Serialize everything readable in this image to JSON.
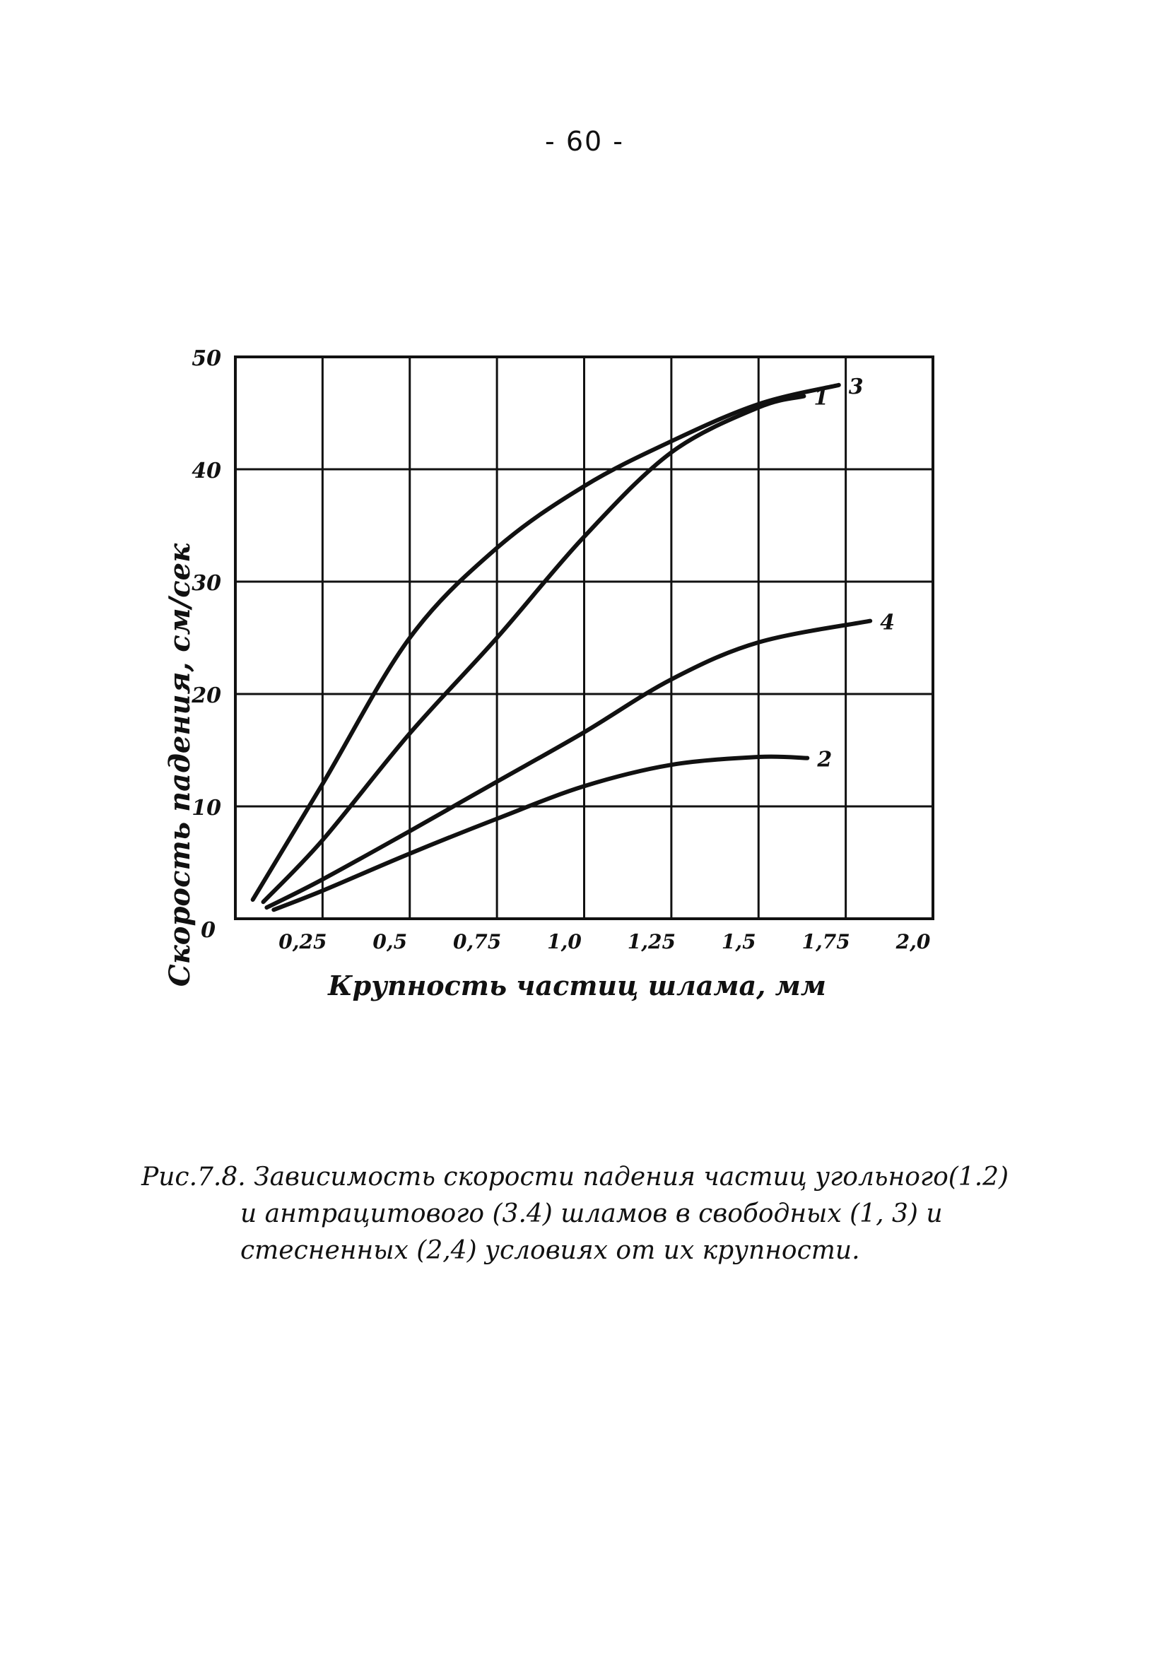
{
  "page_number": "- 60 -",
  "caption": {
    "line1": "Рис.7.8. Зависимость скорости падения частиц угольного(1.2)",
    "line2": "и антрацитового (3.4) шламов в свободных (1, 3) и",
    "line3": "стесненных (2,4) условиях от их крупности."
  },
  "chart_data": {
    "type": "line",
    "title": "",
    "xlabel": "Крупность частиц шлама, мм",
    "ylabel": "Скорость падения, см/сек",
    "xlim": [
      0,
      2.0
    ],
    "ylim": [
      0,
      50
    ],
    "grid": true,
    "legend": "none",
    "x_ticks": [
      {
        "value": 0.25,
        "label": "0,25"
      },
      {
        "value": 0.5,
        "label": "0,5"
      },
      {
        "value": 0.75,
        "label": "0,75"
      },
      {
        "value": 1.0,
        "label": "1,0"
      },
      {
        "value": 1.25,
        "label": "1,25"
      },
      {
        "value": 1.5,
        "label": "1,5"
      },
      {
        "value": 1.75,
        "label": "1,75"
      },
      {
        "value": 2.0,
        "label": "2,0"
      }
    ],
    "origin_label": "0",
    "y_ticks": [
      {
        "value": 10,
        "label": "10"
      },
      {
        "value": 20,
        "label": "20"
      },
      {
        "value": 30,
        "label": "30"
      },
      {
        "value": 40,
        "label": "40"
      },
      {
        "value": 50,
        "label": "50"
      }
    ],
    "series": [
      {
        "name": "1",
        "x": [
          0.08,
          0.25,
          0.5,
          0.75,
          1.0,
          1.25,
          1.5,
          1.63
        ],
        "y": [
          1.5,
          7,
          16.5,
          25,
          34,
          41.5,
          45.5,
          46.5
        ]
      },
      {
        "name": "2",
        "x": [
          0.11,
          0.25,
          0.5,
          0.75,
          1.0,
          1.25,
          1.5,
          1.64
        ],
        "y": [
          0.8,
          2.5,
          5.8,
          8.9,
          11.8,
          13.7,
          14.4,
          14.3
        ]
      },
      {
        "name": "3",
        "x": [
          0.05,
          0.25,
          0.5,
          0.75,
          1.0,
          1.25,
          1.5,
          1.73
        ],
        "y": [
          1.7,
          12,
          25,
          33,
          38.5,
          42.5,
          45.8,
          47.5
        ]
      },
      {
        "name": "4",
        "x": [
          0.09,
          0.25,
          0.5,
          0.75,
          1.0,
          1.25,
          1.5,
          1.82
        ],
        "y": [
          1.0,
          3.5,
          7.8,
          12.2,
          16.6,
          21.3,
          24.6,
          26.5
        ]
      }
    ]
  }
}
